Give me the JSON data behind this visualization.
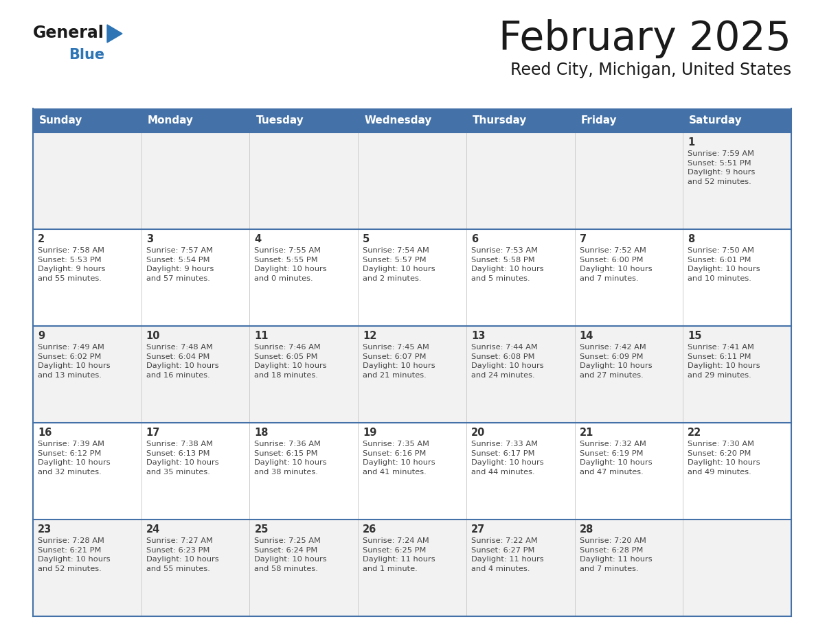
{
  "title": "February 2025",
  "subtitle": "Reed City, Michigan, United States",
  "days_of_week": [
    "Sunday",
    "Monday",
    "Tuesday",
    "Wednesday",
    "Thursday",
    "Friday",
    "Saturday"
  ],
  "header_bg": "#4472A8",
  "header_text": "#FFFFFF",
  "cell_bg_white": "#FFFFFF",
  "cell_bg_gray": "#F2F2F2",
  "row_border_color": "#4472A8",
  "col_divider_color": "#CCCCCC",
  "day_num_color": "#333333",
  "info_text_color": "#444444",
  "title_color": "#1a1a1a",
  "subtitle_color": "#1a1a1a",
  "logo_general_color": "#1a1a1a",
  "logo_blue_color": "#2E75B6",
  "weeks": [
    [
      {
        "day": null,
        "info": ""
      },
      {
        "day": null,
        "info": ""
      },
      {
        "day": null,
        "info": ""
      },
      {
        "day": null,
        "info": ""
      },
      {
        "day": null,
        "info": ""
      },
      {
        "day": null,
        "info": ""
      },
      {
        "day": 1,
        "info": "Sunrise: 7:59 AM\nSunset: 5:51 PM\nDaylight: 9 hours\nand 52 minutes."
      }
    ],
    [
      {
        "day": 2,
        "info": "Sunrise: 7:58 AM\nSunset: 5:53 PM\nDaylight: 9 hours\nand 55 minutes."
      },
      {
        "day": 3,
        "info": "Sunrise: 7:57 AM\nSunset: 5:54 PM\nDaylight: 9 hours\nand 57 minutes."
      },
      {
        "day": 4,
        "info": "Sunrise: 7:55 AM\nSunset: 5:55 PM\nDaylight: 10 hours\nand 0 minutes."
      },
      {
        "day": 5,
        "info": "Sunrise: 7:54 AM\nSunset: 5:57 PM\nDaylight: 10 hours\nand 2 minutes."
      },
      {
        "day": 6,
        "info": "Sunrise: 7:53 AM\nSunset: 5:58 PM\nDaylight: 10 hours\nand 5 minutes."
      },
      {
        "day": 7,
        "info": "Sunrise: 7:52 AM\nSunset: 6:00 PM\nDaylight: 10 hours\nand 7 minutes."
      },
      {
        "day": 8,
        "info": "Sunrise: 7:50 AM\nSunset: 6:01 PM\nDaylight: 10 hours\nand 10 minutes."
      }
    ],
    [
      {
        "day": 9,
        "info": "Sunrise: 7:49 AM\nSunset: 6:02 PM\nDaylight: 10 hours\nand 13 minutes."
      },
      {
        "day": 10,
        "info": "Sunrise: 7:48 AM\nSunset: 6:04 PM\nDaylight: 10 hours\nand 16 minutes."
      },
      {
        "day": 11,
        "info": "Sunrise: 7:46 AM\nSunset: 6:05 PM\nDaylight: 10 hours\nand 18 minutes."
      },
      {
        "day": 12,
        "info": "Sunrise: 7:45 AM\nSunset: 6:07 PM\nDaylight: 10 hours\nand 21 minutes."
      },
      {
        "day": 13,
        "info": "Sunrise: 7:44 AM\nSunset: 6:08 PM\nDaylight: 10 hours\nand 24 minutes."
      },
      {
        "day": 14,
        "info": "Sunrise: 7:42 AM\nSunset: 6:09 PM\nDaylight: 10 hours\nand 27 minutes."
      },
      {
        "day": 15,
        "info": "Sunrise: 7:41 AM\nSunset: 6:11 PM\nDaylight: 10 hours\nand 29 minutes."
      }
    ],
    [
      {
        "day": 16,
        "info": "Sunrise: 7:39 AM\nSunset: 6:12 PM\nDaylight: 10 hours\nand 32 minutes."
      },
      {
        "day": 17,
        "info": "Sunrise: 7:38 AM\nSunset: 6:13 PM\nDaylight: 10 hours\nand 35 minutes."
      },
      {
        "day": 18,
        "info": "Sunrise: 7:36 AM\nSunset: 6:15 PM\nDaylight: 10 hours\nand 38 minutes."
      },
      {
        "day": 19,
        "info": "Sunrise: 7:35 AM\nSunset: 6:16 PM\nDaylight: 10 hours\nand 41 minutes."
      },
      {
        "day": 20,
        "info": "Sunrise: 7:33 AM\nSunset: 6:17 PM\nDaylight: 10 hours\nand 44 minutes."
      },
      {
        "day": 21,
        "info": "Sunrise: 7:32 AM\nSunset: 6:19 PM\nDaylight: 10 hours\nand 47 minutes."
      },
      {
        "day": 22,
        "info": "Sunrise: 7:30 AM\nSunset: 6:20 PM\nDaylight: 10 hours\nand 49 minutes."
      }
    ],
    [
      {
        "day": 23,
        "info": "Sunrise: 7:28 AM\nSunset: 6:21 PM\nDaylight: 10 hours\nand 52 minutes."
      },
      {
        "day": 24,
        "info": "Sunrise: 7:27 AM\nSunset: 6:23 PM\nDaylight: 10 hours\nand 55 minutes."
      },
      {
        "day": 25,
        "info": "Sunrise: 7:25 AM\nSunset: 6:24 PM\nDaylight: 10 hours\nand 58 minutes."
      },
      {
        "day": 26,
        "info": "Sunrise: 7:24 AM\nSunset: 6:25 PM\nDaylight: 11 hours\nand 1 minute."
      },
      {
        "day": 27,
        "info": "Sunrise: 7:22 AM\nSunset: 6:27 PM\nDaylight: 11 hours\nand 4 minutes."
      },
      {
        "day": 28,
        "info": "Sunrise: 7:20 AM\nSunset: 6:28 PM\nDaylight: 11 hours\nand 7 minutes."
      },
      {
        "day": null,
        "info": ""
      }
    ]
  ]
}
